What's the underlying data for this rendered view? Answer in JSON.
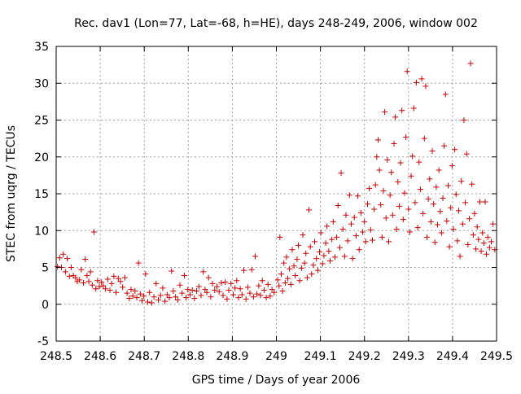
{
  "chart_data": {
    "type": "scatter",
    "title": "Rec. dav1 (Lon=77, Lat=-68, h=HE), days 248-249, 2006, window 002",
    "xlabel": "GPS time / Days of year 2006",
    "ylabel": "STEC from uqrg / TECUs",
    "xlim": [
      248.5,
      249.5
    ],
    "ylim": [
      -5,
      35
    ],
    "xticks": [
      248.5,
      248.6,
      248.7,
      248.8,
      248.9,
      249,
      249.1,
      249.2,
      249.3,
      249.4,
      249.5
    ],
    "xtick_labels": [
      "248.5",
      "248.6",
      "248.7",
      "248.8",
      "248.9",
      "249",
      "249.1",
      "249.2",
      "249.3",
      "249.4",
      "249.5"
    ],
    "yticks": [
      -5,
      0,
      5,
      10,
      15,
      20,
      25,
      30,
      35
    ],
    "ytick_labels": [
      "-5",
      "0",
      "5",
      "10",
      "15",
      "20",
      "25",
      "30",
      "35"
    ],
    "grid": true,
    "legend": "none",
    "marker": "+",
    "color": "#cc0000",
    "series": [
      {
        "points": [
          [
            248.503,
            5.1
          ],
          [
            248.508,
            6.3
          ],
          [
            248.512,
            5.0
          ],
          [
            248.516,
            6.8
          ],
          [
            248.521,
            4.4
          ],
          [
            248.525,
            6.2
          ],
          [
            248.53,
            3.8
          ],
          [
            248.534,
            5.0
          ],
          [
            248.539,
            3.9
          ],
          [
            248.544,
            3.6
          ],
          [
            248.548,
            3.1
          ],
          [
            248.553,
            3.3
          ],
          [
            248.557,
            4.7
          ],
          [
            248.562,
            2.9
          ],
          [
            248.566,
            6.1
          ],
          [
            248.57,
            3.9
          ],
          [
            248.574,
            3.1
          ],
          [
            248.578,
            4.4
          ],
          [
            248.582,
            2.6
          ],
          [
            248.586,
            9.8
          ],
          [
            248.59,
            2.1
          ],
          [
            248.594,
            3.2
          ],
          [
            248.598,
            2.4
          ],
          [
            248.603,
            3.0
          ],
          [
            248.607,
            2.5
          ],
          [
            248.612,
            2.1
          ],
          [
            248.617,
            3.4
          ],
          [
            248.622,
            1.9
          ],
          [
            248.626,
            2.8
          ],
          [
            248.631,
            3.8
          ],
          [
            248.636,
            1.6
          ],
          [
            248.641,
            3.5
          ],
          [
            248.646,
            3.1
          ],
          [
            248.651,
            2.3
          ],
          [
            248.656,
            3.6
          ],
          [
            248.661,
            1.5
          ],
          [
            248.666,
            0.8
          ],
          [
            248.67,
            2.0
          ],
          [
            248.674,
            1.1
          ],
          [
            248.679,
            1.8
          ],
          [
            248.683,
            0.9
          ],
          [
            248.687,
            5.6
          ],
          [
            248.691,
            1.4
          ],
          [
            248.695,
            0.5
          ],
          [
            248.699,
            1.1
          ],
          [
            248.703,
            4.1
          ],
          [
            248.708,
            0.3
          ],
          [
            248.712,
            1.6
          ],
          [
            248.717,
            0.2
          ],
          [
            248.722,
            1.0
          ],
          [
            248.727,
            2.8
          ],
          [
            248.732,
            0.6
          ],
          [
            248.737,
            1.2
          ],
          [
            248.742,
            2.2
          ],
          [
            248.747,
            0.4
          ],
          [
            248.752,
            1.3
          ],
          [
            248.757,
            0.9
          ],
          [
            248.762,
            4.5
          ],
          [
            248.766,
            1.8
          ],
          [
            248.771,
            1.0
          ],
          [
            248.776,
            0.6
          ],
          [
            248.781,
            2.6
          ],
          [
            248.786,
            1.5
          ],
          [
            248.791,
            3.9
          ],
          [
            248.795,
            0.9
          ],
          [
            248.799,
            2.0
          ],
          [
            248.804,
            1.3
          ],
          [
            248.809,
            1.9
          ],
          [
            248.814,
            0.8
          ],
          [
            248.819,
            1.8
          ],
          [
            248.824,
            2.4
          ],
          [
            248.829,
            1.2
          ],
          [
            248.834,
            4.4
          ],
          [
            248.838,
            2.0
          ],
          [
            248.842,
            1.6
          ],
          [
            248.846,
            3.6
          ],
          [
            248.851,
            1.0
          ],
          [
            248.855,
            2.8
          ],
          [
            248.86,
            1.9
          ],
          [
            248.865,
            2.4
          ],
          [
            248.87,
            1.7
          ],
          [
            248.875,
            2.9
          ],
          [
            248.879,
            1.2
          ],
          [
            248.884,
            3.0
          ],
          [
            248.888,
            0.7
          ],
          [
            248.892,
            1.9
          ],
          [
            248.897,
            2.8
          ],
          [
            248.902,
            1.3
          ],
          [
            248.906,
            2.2
          ],
          [
            248.91,
            3.2
          ],
          [
            248.914,
            0.9
          ],
          [
            248.918,
            2.1
          ],
          [
            248.922,
            1.3
          ],
          [
            248.926,
            4.6
          ],
          [
            248.931,
            0.7
          ],
          [
            248.935,
            2.3
          ],
          [
            248.94,
            1.5
          ],
          [
            248.944,
            4.7
          ],
          [
            248.948,
            1.0
          ],
          [
            248.952,
            6.5
          ],
          [
            248.956,
            1.4
          ],
          [
            248.96,
            2.5
          ],
          [
            248.964,
            1.2
          ],
          [
            248.968,
            3.2
          ],
          [
            248.972,
            1.9
          ],
          [
            248.977,
            0.9
          ],
          [
            248.981,
            2.7
          ],
          [
            248.986,
            1.1
          ],
          [
            248.99,
            2.0
          ],
          [
            248.995,
            1.6
          ],
          [
            249.003,
            3.3
          ],
          [
            249.006,
            2.5
          ],
          [
            249.008,
            9.1
          ],
          [
            249.011,
            4.1
          ],
          [
            249.014,
            1.8
          ],
          [
            249.017,
            5.6
          ],
          [
            249.02,
            2.9
          ],
          [
            249.023,
            6.4
          ],
          [
            249.026,
            3.5
          ],
          [
            249.03,
            4.8
          ],
          [
            249.033,
            2.7
          ],
          [
            249.036,
            7.4
          ],
          [
            249.04,
            5.2
          ],
          [
            249.043,
            3.9
          ],
          [
            249.047,
            6.1
          ],
          [
            249.05,
            8.0
          ],
          [
            249.053,
            3.2
          ],
          [
            249.057,
            4.9
          ],
          [
            249.06,
            9.4
          ],
          [
            249.064,
            5.6
          ],
          [
            249.067,
            6.9
          ],
          [
            249.07,
            3.6
          ],
          [
            249.074,
            12.8
          ],
          [
            249.077,
            7.8
          ],
          [
            249.08,
            4.1
          ],
          [
            249.084,
            5.3
          ],
          [
            249.087,
            8.5
          ],
          [
            249.091,
            6.2
          ],
          [
            249.094,
            4.6
          ],
          [
            249.098,
            7.1
          ],
          [
            249.101,
            9.7
          ],
          [
            249.105,
            5.5
          ],
          [
            249.108,
            6.6
          ],
          [
            249.112,
            8.3
          ],
          [
            249.115,
            10.6
          ],
          [
            249.119,
            7.2
          ],
          [
            249.122,
            5.9
          ],
          [
            249.126,
            8.8
          ],
          [
            249.129,
            11.2
          ],
          [
            249.133,
            6.4
          ],
          [
            249.137,
            9.1
          ],
          [
            249.14,
            13.4
          ],
          [
            249.144,
            7.7
          ],
          [
            249.147,
            17.8
          ],
          [
            249.151,
            10.2
          ],
          [
            249.155,
            6.5
          ],
          [
            249.158,
            12.1
          ],
          [
            249.162,
            8.6
          ],
          [
            249.166,
            14.8
          ],
          [
            249.17,
            10.9
          ],
          [
            249.173,
            6.2
          ],
          [
            249.177,
            11.8
          ],
          [
            249.181,
            9.3
          ],
          [
            249.185,
            14.7
          ],
          [
            249.188,
            7.4
          ],
          [
            249.192,
            12.4
          ],
          [
            249.196,
            9.8
          ],
          [
            249.2,
            11.2
          ],
          [
            249.203,
            8.5
          ],
          [
            249.207,
            13.6
          ],
          [
            249.211,
            15.7
          ],
          [
            249.214,
            10.1
          ],
          [
            249.218,
            8.7
          ],
          [
            249.222,
            12.9
          ],
          [
            249.225,
            16.2
          ],
          [
            249.228,
            20.0
          ],
          [
            249.231,
            22.3
          ],
          [
            249.234,
            18.2
          ],
          [
            249.237,
            13.5
          ],
          [
            249.24,
            9.1
          ],
          [
            249.243,
            15.4
          ],
          [
            249.246,
            26.1
          ],
          [
            249.249,
            11.7
          ],
          [
            249.252,
            19.6
          ],
          [
            249.255,
            8.5
          ],
          [
            249.258,
            14.8
          ],
          [
            249.261,
            17.9
          ],
          [
            249.264,
            12.1
          ],
          [
            249.267,
            21.8
          ],
          [
            249.27,
            25.4
          ],
          [
            249.273,
            10.2
          ],
          [
            249.276,
            16.6
          ],
          [
            249.279,
            13.3
          ],
          [
            249.282,
            19.2
          ],
          [
            249.285,
            26.3
          ],
          [
            249.288,
            11.5
          ],
          [
            249.291,
            15.1
          ],
          [
            249.294,
            22.7
          ],
          [
            249.297,
            31.6
          ],
          [
            249.3,
            12.9
          ],
          [
            249.303,
            9.8
          ],
          [
            249.306,
            17.4
          ],
          [
            249.309,
            20.1
          ],
          [
            249.312,
            26.6
          ],
          [
            249.315,
            13.8
          ],
          [
            249.318,
            30.1
          ],
          [
            249.321,
            10.4
          ],
          [
            249.324,
            19.3
          ],
          [
            249.327,
            15.6
          ],
          [
            249.33,
            30.6
          ],
          [
            249.333,
            12.3
          ],
          [
            249.336,
            22.5
          ],
          [
            249.339,
            29.6
          ],
          [
            249.342,
            9.1
          ],
          [
            249.345,
            14.3
          ],
          [
            249.348,
            17.0
          ],
          [
            249.351,
            11.2
          ],
          [
            249.354,
            20.8
          ],
          [
            249.357,
            13.6
          ],
          [
            249.36,
            8.4
          ],
          [
            249.363,
            15.9
          ],
          [
            249.366,
            10.8
          ],
          [
            249.369,
            18.2
          ],
          [
            249.372,
            12.6
          ],
          [
            249.375,
            9.7
          ],
          [
            249.378,
            14.4
          ],
          [
            249.381,
            21.5
          ],
          [
            249.384,
            28.5
          ],
          [
            249.387,
            11.3
          ],
          [
            249.39,
            16.1
          ],
          [
            249.393,
            7.8
          ],
          [
            249.396,
            13.1
          ],
          [
            249.399,
            18.8
          ],
          [
            249.402,
            10.2
          ],
          [
            249.405,
            21.0
          ],
          [
            249.408,
            14.9
          ],
          [
            249.411,
            8.6
          ],
          [
            249.414,
            12.7
          ],
          [
            249.417,
            6.5
          ],
          [
            249.42,
            16.7
          ],
          [
            249.423,
            10.9
          ],
          [
            249.426,
            25.0
          ],
          [
            249.429,
            13.8
          ],
          [
            249.432,
            20.4
          ],
          [
            249.435,
            8.1
          ],
          [
            249.438,
            11.6
          ],
          [
            249.441,
            32.7
          ],
          [
            249.444,
            16.3
          ],
          [
            249.447,
            9.4
          ],
          [
            249.45,
            12.3
          ],
          [
            249.453,
            7.5
          ],
          [
            249.456,
            10.5
          ],
          [
            249.459,
            8.8
          ],
          [
            249.462,
            13.9
          ],
          [
            249.465,
            7.2
          ],
          [
            249.468,
            9.7
          ],
          [
            249.471,
            8.3
          ],
          [
            249.474,
            13.9
          ],
          [
            249.477,
            6.8
          ],
          [
            249.48,
            9.1
          ],
          [
            249.484,
            7.7
          ],
          [
            249.488,
            8.5
          ],
          [
            249.492,
            10.9
          ],
          [
            249.496,
            7.4
          ]
        ]
      }
    ]
  }
}
